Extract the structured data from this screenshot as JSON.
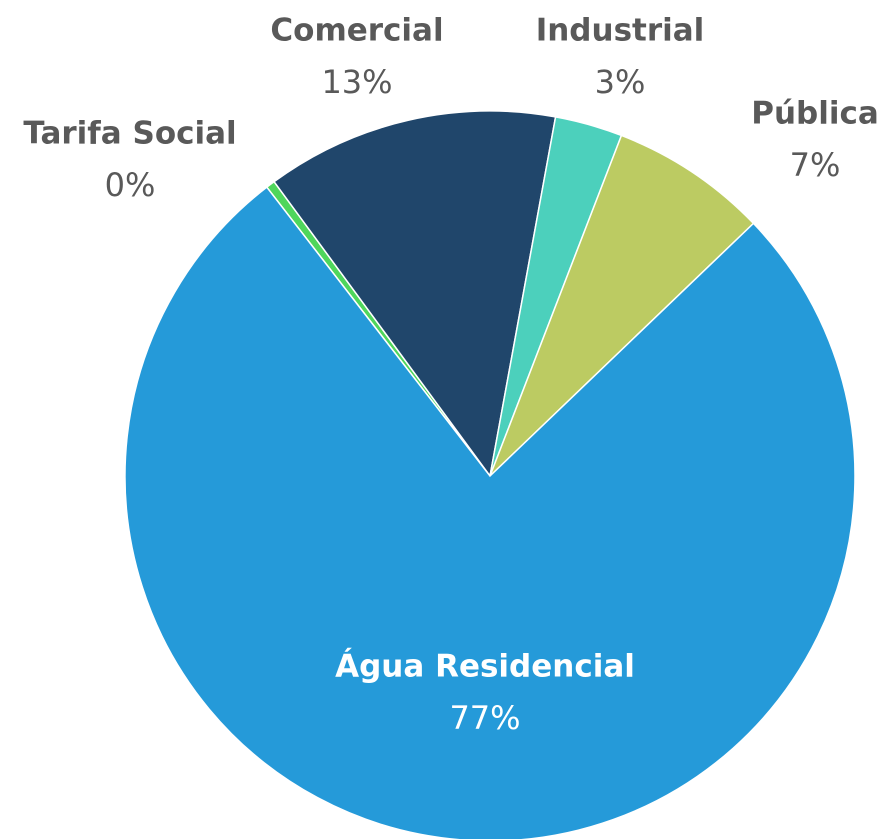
{
  "chart_data": {
    "type": "pie",
    "categories": [
      "Tarifa Social",
      "Comercial",
      "Industrial",
      "Pública",
      "Água Residencial"
    ],
    "values": [
      0.4,
      13,
      3,
      7,
      77
    ],
    "value_labels": [
      "0%",
      "13%",
      "3%",
      "7%",
      "77%"
    ],
    "colors": [
      "#4fd65c",
      "#20466b",
      "#4cd0bc",
      "#bccb62",
      "#259ad9"
    ]
  }
}
